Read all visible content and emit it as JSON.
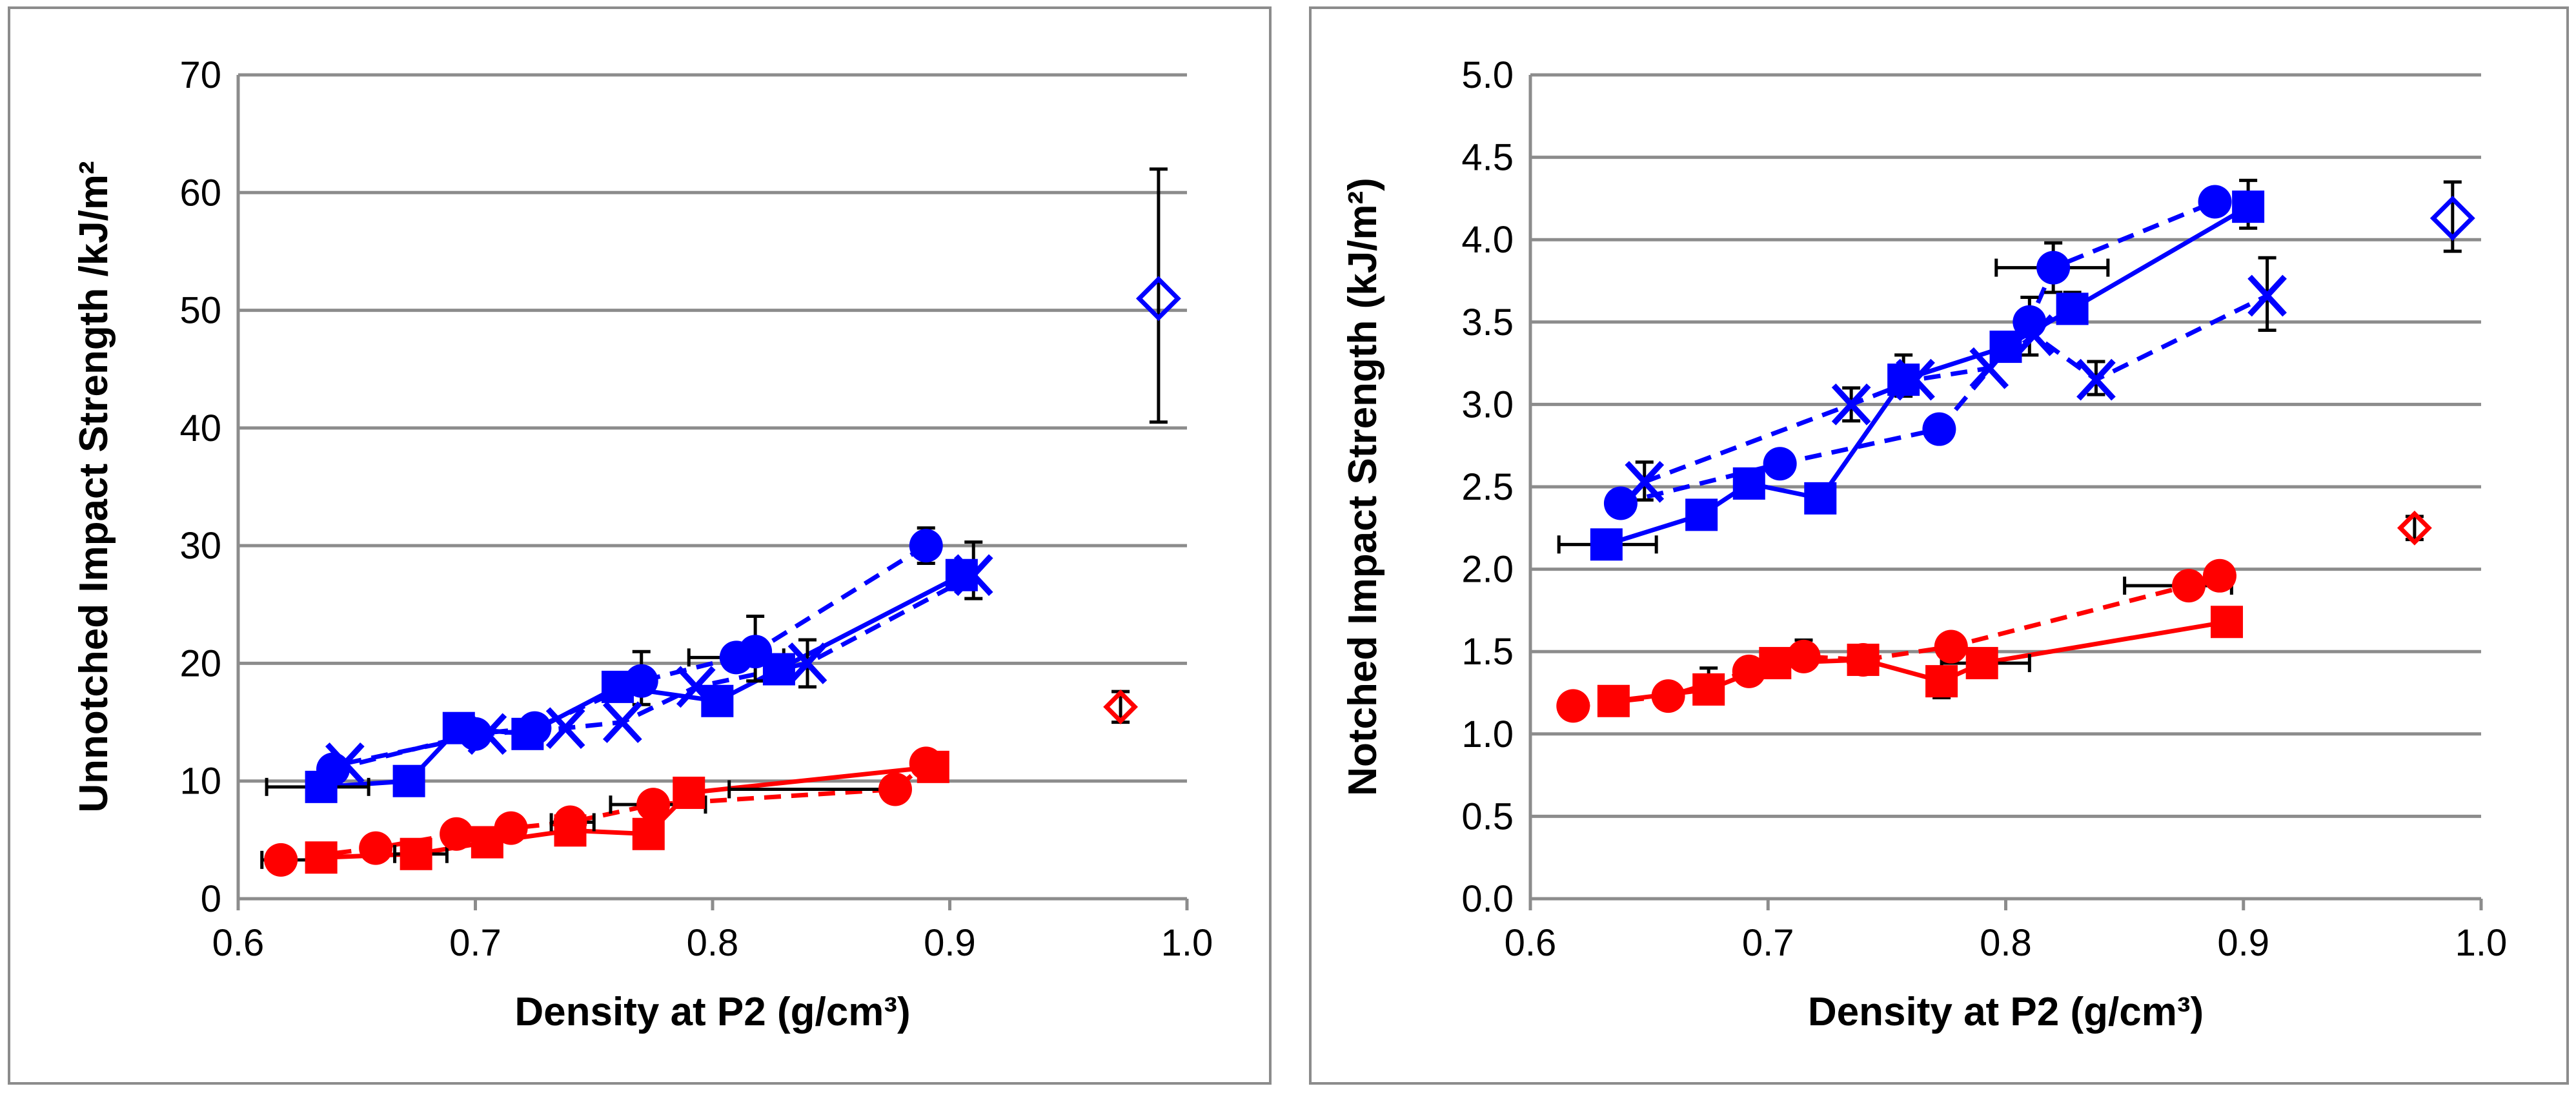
{
  "colors": {
    "blue": "#0000ff",
    "red": "#ff0000",
    "grid": "#8c8c8c",
    "error": "#000000"
  },
  "chart_data": [
    {
      "type": "scatter",
      "title": "",
      "xlabel": "Density at P2 (g/cm³)",
      "ylabel": "Unnotched Impact Strength /kJ/m²",
      "xlim": [
        0.6,
        1.0
      ],
      "ylim": [
        0,
        70
      ],
      "xticks": [
        "0.6",
        "0.7",
        "0.8",
        "0.9",
        "1.0"
      ],
      "yticks": [
        "0",
        "10",
        "20",
        "30",
        "40",
        "50",
        "60",
        "70"
      ],
      "grid": "horizontal",
      "legend": "none",
      "series": [
        {
          "marker": "circle",
          "color": "blue",
          "line": "dashed",
          "points": [
            [
              0.64,
              11.0
            ],
            [
              0.7,
              14.0
            ],
            [
              0.725,
              14.5
            ],
            [
              0.77,
              18.5
            ],
            [
              0.81,
              20.5
            ],
            [
              0.818,
              21.0
            ],
            [
              0.89,
              30.0
            ]
          ]
        },
        {
          "marker": "square",
          "color": "blue",
          "line": "solid",
          "points": [
            [
              0.635,
              9.5
            ],
            [
              0.672,
              10.0
            ],
            [
              0.693,
              14.5
            ],
            [
              0.722,
              14.0
            ],
            [
              0.76,
              18.0
            ],
            [
              0.802,
              16.8
            ],
            [
              0.828,
              19.5
            ],
            [
              0.905,
              27.5
            ]
          ]
        },
        {
          "marker": "x",
          "color": "blue",
          "line": "dashed",
          "points": [
            [
              0.645,
              11.5
            ],
            [
              0.705,
              14.0
            ],
            [
              0.738,
              14.5
            ],
            [
              0.762,
              15.0
            ],
            [
              0.793,
              18.0
            ],
            [
              0.84,
              20.0
            ],
            [
              0.91,
              27.5
            ]
          ]
        },
        {
          "marker": "diamond-open",
          "color": "blue",
          "line": "none",
          "points": [
            [
              0.988,
              51.0
            ]
          ]
        },
        {
          "marker": "circle",
          "color": "red",
          "line": "dashed",
          "points": [
            [
              0.618,
              3.3
            ],
            [
              0.658,
              4.3
            ],
            [
              0.692,
              5.5
            ],
            [
              0.715,
              6.0
            ],
            [
              0.74,
              6.5
            ],
            [
              0.775,
              8.0
            ],
            [
              0.877,
              9.3
            ],
            [
              0.89,
              11.5
            ]
          ]
        },
        {
          "marker": "square",
          "color": "red",
          "line": "solid",
          "points": [
            [
              0.635,
              3.5
            ],
            [
              0.675,
              3.8
            ],
            [
              0.705,
              4.8
            ],
            [
              0.74,
              5.8
            ],
            [
              0.773,
              5.5
            ],
            [
              0.79,
              9.0
            ],
            [
              0.893,
              11.2
            ]
          ]
        },
        {
          "marker": "diamond-open",
          "color": "red",
          "line": "none",
          "points": [
            [
              0.972,
              16.3
            ]
          ]
        }
      ],
      "error_bars": [
        {
          "x": 0.988,
          "y": 51.0,
          "yerr": [
            40.5,
            62.0
          ]
        },
        {
          "x": 0.89,
          "y": 30.0,
          "yerr": [
            28.5,
            31.5
          ]
        },
        {
          "x": 0.91,
          "y": 27.5,
          "yerr": [
            25.5,
            30.3
          ]
        },
        {
          "x": 0.818,
          "y": 21.0,
          "yerr": [
            18.5,
            24.0
          ]
        },
        {
          "x": 0.77,
          "y": 18.5,
          "yerr": [
            16.5,
            21.0
          ]
        },
        {
          "x": 0.84,
          "y": 20.0,
          "yerr": [
            18.0,
            22.0
          ]
        },
        {
          "x": 0.972,
          "y": 16.3,
          "yerr": [
            15.0,
            17.6
          ]
        },
        {
          "x": 0.81,
          "y": 20.5,
          "xerr": [
            0.79,
            0.83
          ]
        },
        {
          "x": 0.635,
          "y": 9.5,
          "xerr": [
            0.612,
            0.655
          ]
        },
        {
          "x": 0.775,
          "y": 8.0,
          "xerr": [
            0.757,
            0.797
          ]
        },
        {
          "x": 0.877,
          "y": 9.3,
          "xerr": [
            0.807,
            0.877
          ]
        },
        {
          "x": 0.618,
          "y": 3.3,
          "xerr": [
            0.61,
            0.632
          ]
        },
        {
          "x": 0.675,
          "y": 3.8,
          "xerr": [
            0.666,
            0.688
          ]
        },
        {
          "x": 0.74,
          "y": 6.5,
          "xerr": [
            0.732,
            0.75
          ]
        }
      ]
    },
    {
      "type": "scatter",
      "title": "",
      "xlabel": "Density at P2 (g/cm³)",
      "ylabel": "Notched Impact Strength (kJ/m²)",
      "xlim": [
        0.6,
        1.0
      ],
      "ylim": [
        0.0,
        5.0
      ],
      "xticks": [
        "0.6",
        "0.7",
        "0.8",
        "0.9",
        "1.0"
      ],
      "yticks": [
        "0.0",
        "0.5",
        "1.0",
        "1.5",
        "2.0",
        "2.5",
        "3.0",
        "3.5",
        "4.0",
        "4.5",
        "5.0"
      ],
      "grid": "horizontal",
      "legend": "none",
      "series": [
        {
          "marker": "circle",
          "color": "blue",
          "line": "dashed",
          "points": [
            [
              0.638,
              2.4
            ],
            [
              0.705,
              2.64
            ],
            [
              0.772,
              2.85
            ],
            [
              0.81,
              3.5
            ],
            [
              0.82,
              3.83
            ],
            [
              0.888,
              4.23
            ]
          ]
        },
        {
          "marker": "square",
          "color": "blue",
          "line": "solid",
          "points": [
            [
              0.632,
              2.15
            ],
            [
              0.672,
              2.33
            ],
            [
              0.692,
              2.52
            ],
            [
              0.722,
              2.43
            ],
            [
              0.757,
              3.15
            ],
            [
              0.8,
              3.35
            ],
            [
              0.828,
              3.58
            ],
            [
              0.902,
              4.2
            ]
          ]
        },
        {
          "marker": "x",
          "color": "blue",
          "line": "dashed",
          "points": [
            [
              0.648,
              2.53
            ],
            [
              0.735,
              3.0
            ],
            [
              0.762,
              3.15
            ],
            [
              0.793,
              3.22
            ],
            [
              0.812,
              3.42
            ],
            [
              0.838,
              3.15
            ],
            [
              0.91,
              3.66
            ]
          ]
        },
        {
          "marker": "diamond-open",
          "color": "blue",
          "line": "none",
          "points": [
            [
              0.988,
              4.13
            ]
          ]
        },
        {
          "marker": "circle",
          "color": "red",
          "line": "dashed",
          "points": [
            [
              0.618,
              1.17
            ],
            [
              0.658,
              1.23
            ],
            [
              0.692,
              1.38
            ],
            [
              0.715,
              1.47
            ],
            [
              0.74,
              1.45
            ],
            [
              0.777,
              1.53
            ],
            [
              0.877,
              1.9
            ],
            [
              0.89,
              1.96
            ]
          ]
        },
        {
          "marker": "square",
          "color": "red",
          "line": "solid",
          "points": [
            [
              0.635,
              1.2
            ],
            [
              0.675,
              1.27
            ],
            [
              0.703,
              1.43
            ],
            [
              0.74,
              1.45
            ],
            [
              0.773,
              1.32
            ],
            [
              0.79,
              1.43
            ],
            [
              0.893,
              1.68
            ]
          ]
        },
        {
          "marker": "diamond-open",
          "color": "red",
          "line": "none",
          "points": [
            [
              0.972,
              2.25
            ]
          ]
        }
      ],
      "error_bars": [
        {
          "x": 0.988,
          "y": 4.13,
          "yerr": [
            3.93,
            4.35
          ]
        },
        {
          "x": 0.902,
          "y": 4.2,
          "yerr": [
            4.07,
            4.36
          ]
        },
        {
          "x": 0.91,
          "y": 3.66,
          "yerr": [
            3.45,
            3.89
          ]
        },
        {
          "x": 0.82,
          "y": 3.83,
          "yerr": [
            3.68,
            3.98
          ],
          "xerr": [
            0.796,
            0.843
          ]
        },
        {
          "x": 0.828,
          "y": 3.58,
          "yerr": [
            3.5,
            3.68
          ]
        },
        {
          "x": 0.81,
          "y": 3.42,
          "yerr": [
            3.3,
            3.65
          ]
        },
        {
          "x": 0.838,
          "y": 3.15,
          "yerr": [
            3.06,
            3.26
          ]
        },
        {
          "x": 0.757,
          "y": 3.15,
          "yerr": [
            3.05,
            3.3
          ]
        },
        {
          "x": 0.735,
          "y": 3.0,
          "yerr": [
            2.9,
            3.1
          ]
        },
        {
          "x": 0.648,
          "y": 2.53,
          "yerr": [
            2.42,
            2.65
          ]
        },
        {
          "x": 0.632,
          "y": 2.15,
          "xerr": [
            0.612,
            0.653
          ]
        },
        {
          "x": 0.877,
          "y": 1.9,
          "xerr": [
            0.85,
            0.895
          ]
        },
        {
          "x": 0.79,
          "y": 1.43,
          "xerr": [
            0.773,
            0.81
          ]
        },
        {
          "x": 0.773,
          "y": 1.32,
          "yerr": [
            1.22,
            1.4
          ]
        },
        {
          "x": 0.972,
          "y": 2.25,
          "yerr": [
            2.18,
            2.32
          ]
        },
        {
          "x": 0.715,
          "y": 1.47,
          "yerr": [
            1.4,
            1.57
          ]
        },
        {
          "x": 0.675,
          "y": 1.27,
          "yerr": [
            1.2,
            1.4
          ]
        }
      ]
    }
  ]
}
